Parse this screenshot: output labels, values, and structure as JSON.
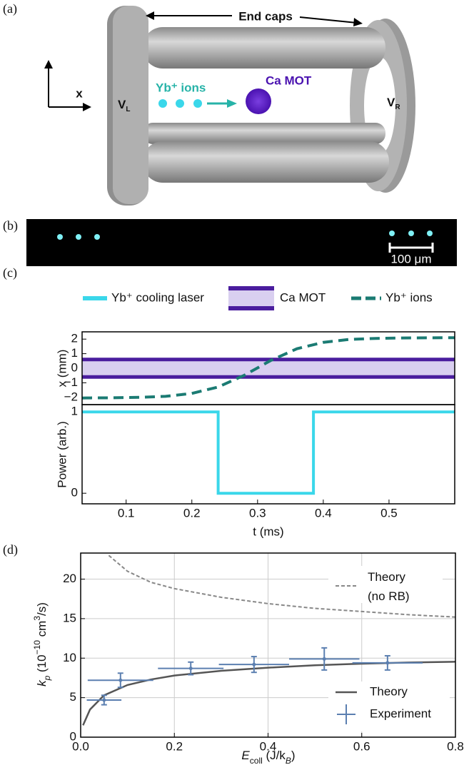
{
  "panels": {
    "a": "(a)",
    "b": "(b)",
    "c": "(c)",
    "d": "(d)"
  },
  "illustration": {
    "end_caps": "End caps",
    "axis": "x",
    "left": [
      "V",
      "L"
    ],
    "right": [
      "V",
      "R"
    ],
    "ions": "Yb⁺ ions",
    "mot": "Ca MOT"
  },
  "image": {
    "scale_bar": "100 μm"
  },
  "chart_data": [
    {
      "type": "line",
      "ylabel": "x (mm)",
      "xlim": [
        0.033,
        0.6
      ],
      "ylim": [
        -2.5,
        2.5
      ],
      "yticks": [
        {
          "value": -2,
          "label": "−2"
        },
        {
          "value": -1,
          "label": "−1"
        },
        0,
        1,
        2
      ],
      "grid": false,
      "band": {
        "name": "Ca MOT",
        "color": "#4a1d9e",
        "fill": "#d9cff0",
        "values": [
          -0.6,
          0.6
        ]
      },
      "x": [
        0.033,
        0.04,
        0.08,
        0.12,
        0.16,
        0.2,
        0.24,
        0.28,
        0.32,
        0.36,
        0.4,
        0.44,
        0.48,
        0.52,
        0.56,
        0.6
      ],
      "series": [
        {
          "name": "Yb⁺ ions",
          "color": "#1b7b73",
          "dashed": true,
          "values": [
            -2.05,
            -2.04,
            -2.03,
            -2.0,
            -1.93,
            -1.73,
            -1.29,
            -0.48,
            0.53,
            1.34,
            1.78,
            1.98,
            2.05,
            2.08,
            2.09,
            2.1
          ]
        }
      ]
    },
    {
      "type": "line",
      "ylabel": "Power (arb.)",
      "xlabel": "t (ms)",
      "xlim": [
        0.033,
        0.6
      ],
      "ylim": [
        -0.13,
        1.09
      ],
      "yticks": [
        0,
        1
      ],
      "xticks": [
        0.1,
        0.2,
        0.3,
        0.4,
        0.5
      ],
      "grid": false,
      "x": [
        0.033,
        0.24,
        0.24,
        0.385,
        0.385,
        0.6
      ],
      "series": [
        {
          "name": "Yb⁺ cooling laser",
          "color": "#3ad7ea",
          "dashed": false,
          "values": [
            1,
            1,
            0,
            0,
            1,
            1
          ]
        }
      ]
    },
    {
      "type": "scatter",
      "ylabel": [
        "k",
        "p",
        " (10",
        "−10",
        " cm",
        "3",
        "/s)"
      ],
      "xlabel": [
        "E",
        "coll",
        " (J/k",
        "B",
        ")"
      ],
      "xlim": [
        0,
        0.8
      ],
      "ylim": [
        0,
        23.3
      ],
      "grid": true,
      "xticks": [
        {
          "value": 0,
          "label": "0.0"
        },
        0.2,
        0.4,
        0.6,
        0.8
      ],
      "yticks": [
        0,
        5,
        10,
        15,
        20
      ],
      "series": [
        {
          "name": "Theory (no RB)",
          "color": "#888888",
          "dashed": true,
          "x": [
            0.06,
            0.1,
            0.15,
            0.2,
            0.3,
            0.4,
            0.5,
            0.6,
            0.7,
            0.8
          ],
          "values": [
            23,
            21,
            19.6,
            18.8,
            17.7,
            16.9,
            16.3,
            15.9,
            15.5,
            15.2
          ]
        },
        {
          "name": "Theory",
          "color": "#555555",
          "dashed": false,
          "x": [
            0.005,
            0.02,
            0.05,
            0.1,
            0.15,
            0.2,
            0.3,
            0.4,
            0.5,
            0.6,
            0.7,
            0.8
          ],
          "values": [
            1.5,
            3.5,
            5.3,
            6.6,
            7.3,
            7.8,
            8.4,
            8.8,
            9.1,
            9.3,
            9.45,
            9.55
          ]
        },
        {
          "name": "Experiment",
          "color": "#5b7fb0",
          "x": [
            0.05,
            0.085,
            0.235,
            0.37,
            0.52,
            0.655
          ],
          "values": [
            4.7,
            7.2,
            8.7,
            9.2,
            9.9,
            9.4
          ],
          "xerr": [
            0.037,
            0.07,
            0.07,
            0.075,
            0.075,
            0.075
          ],
          "yerr": [
            0.6,
            0.9,
            0.8,
            1.0,
            1.4,
            0.9
          ]
        }
      ]
    }
  ]
}
